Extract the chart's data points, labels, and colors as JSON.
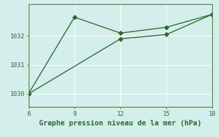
{
  "line1_x": [
    6,
    9,
    12,
    15,
    18
  ],
  "line1_y": [
    1030.0,
    1032.65,
    1032.1,
    1032.3,
    1032.75
  ],
  "line2_x": [
    6,
    12,
    15,
    18
  ],
  "line2_y": [
    1030.0,
    1031.9,
    1032.05,
    1032.75
  ],
  "color": "#2d6a2d",
  "bg_color": "#d4eeeb",
  "xlabel": "Graphe pression niveau de la mer (hPa)",
  "xlim": [
    6,
    18
  ],
  "ylim": [
    1029.55,
    1033.1
  ],
  "xticks": [
    6,
    9,
    12,
    15,
    18
  ],
  "yticks": [
    1030,
    1031,
    1032
  ],
  "marker": "D",
  "markersize": 3,
  "linewidth": 1.0,
  "xlabel_fontsize": 7.5,
  "tick_fontsize": 6.5,
  "grid_color": "#b0d8d4",
  "spine_color": "#4a7a4a"
}
